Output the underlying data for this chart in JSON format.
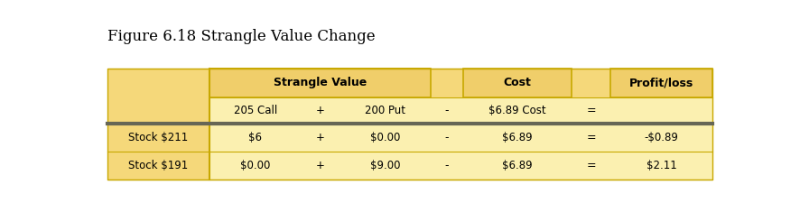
{
  "title": "Figure 6.18 Strangle Value Change",
  "title_fontsize": 12,
  "bg_color": "#F5D87A",
  "header_box_bg": "#F0CE6A",
  "row_bg_dark": "#F5D87A",
  "row_bg_light": "#FBF0B0",
  "figure_bg": "#FFFFFF",
  "border_color": "#C8A800",
  "thick_border_color": "#666655",
  "header_row1": [
    "Strangle Value",
    "Cost",
    "Profit/loss"
  ],
  "header_row2": [
    "205 Call",
    "+",
    "200 Put",
    "-",
    "$6.89 Cost",
    "=",
    ""
  ],
  "data_rows": [
    [
      "Stock $211",
      "$6",
      "+",
      "$0.00",
      "-",
      "$6.89",
      "=",
      "-$0.89"
    ],
    [
      "Stock $191",
      "$0.00",
      "+",
      "$9.00",
      "-",
      "$6.89",
      "=",
      "$2.11"
    ]
  ]
}
